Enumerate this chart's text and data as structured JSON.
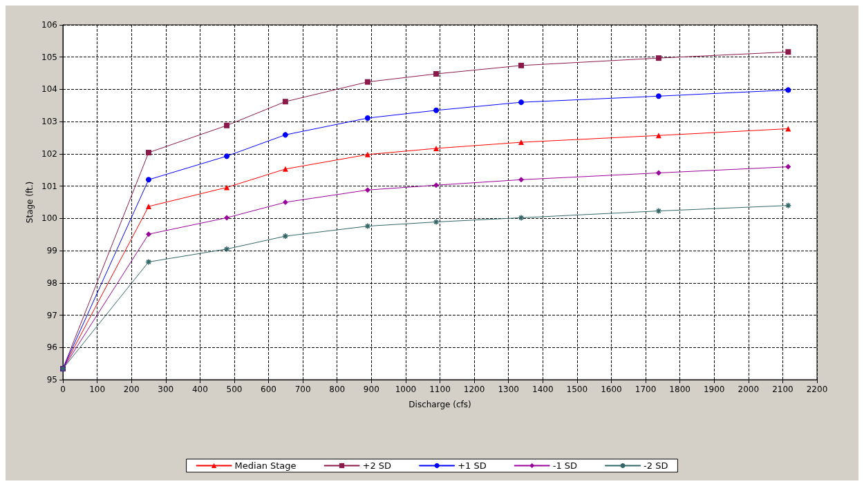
{
  "chart_data": {
    "type": "line",
    "xlabel": "Discharge (cfs)",
    "ylabel": "Stage (ft.)",
    "x": [
      0,
      250,
      478,
      649,
      889,
      1089,
      1337,
      1738,
      2116
    ],
    "xlim": [
      0,
      2200
    ],
    "xticks": [
      0,
      100,
      200,
      300,
      400,
      500,
      600,
      700,
      800,
      900,
      1000,
      1100,
      1200,
      1300,
      1400,
      1500,
      1600,
      1700,
      1800,
      1900,
      2000,
      2100,
      2200
    ],
    "ylim": [
      95,
      106
    ],
    "yticks": [
      95,
      96,
      97,
      98,
      99,
      100,
      101,
      102,
      103,
      104,
      105,
      106
    ],
    "grid": true,
    "legend": "bottom",
    "line_style": "solid",
    "series": [
      {
        "name": "Median Stage",
        "color": "#ff0000",
        "marker": "triangle",
        "values": [
          95.34,
          100.37,
          100.96,
          101.53,
          101.98,
          102.17,
          102.36,
          102.57,
          102.78
        ]
      },
      {
        "name": "+2 SD",
        "color": "#8b1a4a",
        "marker": "square",
        "values": [
          95.34,
          102.04,
          102.88,
          103.62,
          104.23,
          104.48,
          104.74,
          104.97,
          105.16
        ]
      },
      {
        "name": "+1 SD",
        "color": "#0000ff",
        "marker": "circle",
        "values": [
          95.34,
          101.2,
          101.93,
          102.59,
          103.11,
          103.35,
          103.6,
          103.79,
          103.98
        ]
      },
      {
        "name": "-1 SD",
        "color": "#990099",
        "marker": "diamond",
        "values": [
          95.34,
          99.51,
          100.02,
          100.5,
          100.88,
          101.03,
          101.2,
          101.41,
          101.6
        ]
      },
      {
        "name": "-2 SD",
        "color": "#336666",
        "marker": "cross",
        "values": [
          95.34,
          98.65,
          99.05,
          99.45,
          99.76,
          99.89,
          100.02,
          100.23,
          100.4
        ]
      }
    ]
  }
}
